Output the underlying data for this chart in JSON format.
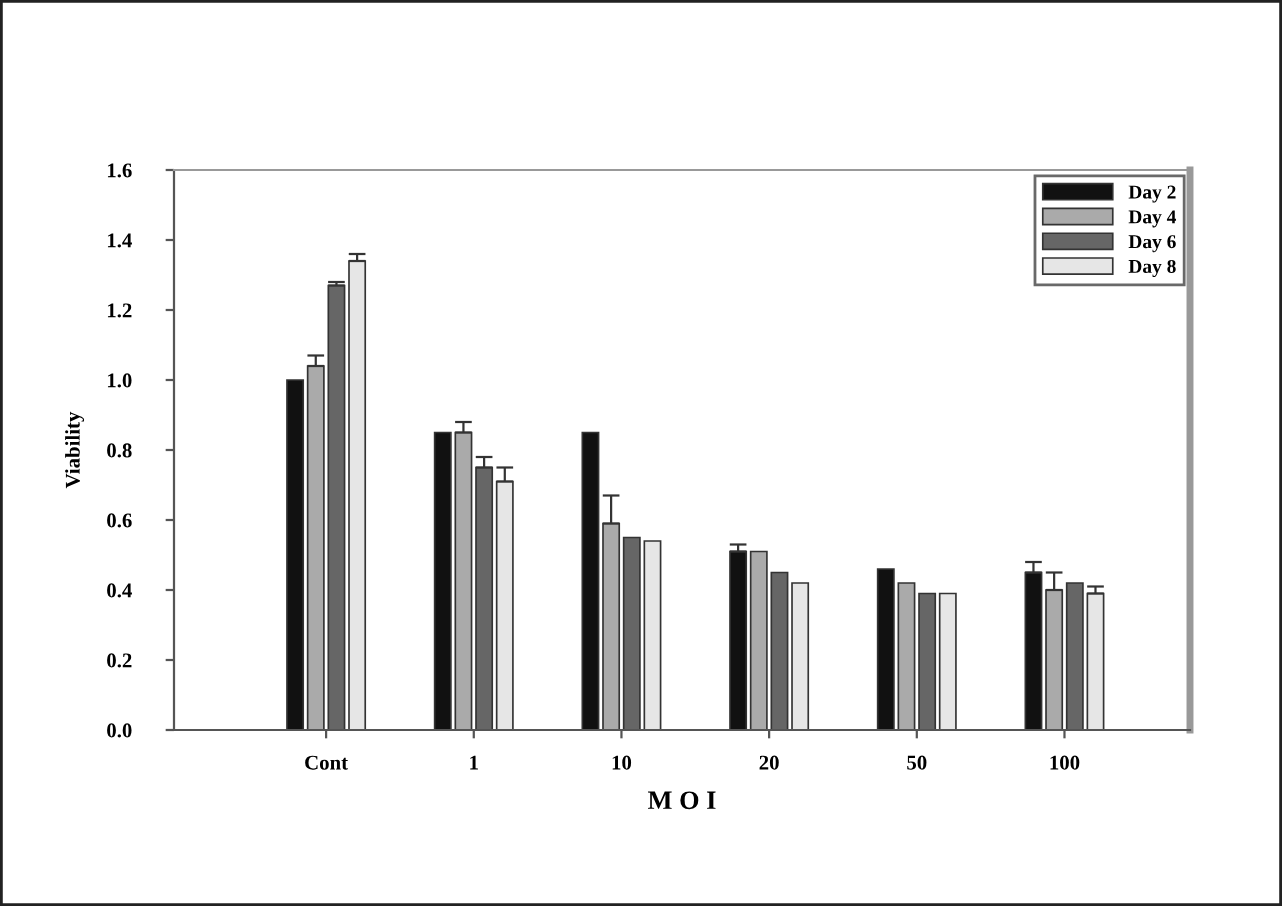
{
  "chart_data": {
    "type": "bar",
    "xlabel": "M O I",
    "ylabel": "Viability",
    "categories": [
      "Cont",
      "1",
      "10",
      "20",
      "50",
      "100"
    ],
    "series": [
      {
        "name": "Day 2",
        "color": "#111111",
        "values": [
          1.0,
          0.85,
          0.85,
          0.51,
          0.46,
          0.45
        ],
        "errors": [
          null,
          null,
          null,
          [
            0.51,
            0.53
          ],
          null,
          [
            0.45,
            0.48
          ]
        ]
      },
      {
        "name": "Day 4",
        "color": "#aaaaaa",
        "values": [
          1.04,
          0.85,
          0.59,
          0.51,
          0.42,
          0.4
        ],
        "errors": [
          [
            1.04,
            1.07
          ],
          [
            0.85,
            0.88
          ],
          [
            0.59,
            0.67
          ],
          null,
          null,
          [
            0.4,
            0.45
          ]
        ]
      },
      {
        "name": "Day 6",
        "color": "#666666",
        "values": [
          1.27,
          0.75,
          0.55,
          0.45,
          0.39,
          0.42
        ],
        "errors": [
          [
            1.27,
            1.28
          ],
          [
            0.75,
            0.78
          ],
          null,
          null,
          null,
          null
        ]
      },
      {
        "name": "Day 8",
        "color": "#e6e6e6",
        "values": [
          1.34,
          0.71,
          0.54,
          0.42,
          0.39,
          0.39
        ],
        "errors": [
          [
            1.34,
            1.36
          ],
          [
            0.71,
            0.75
          ],
          null,
          null,
          null,
          [
            0.39,
            0.41
          ]
        ]
      }
    ],
    "ylim": [
      0,
      1.6
    ],
    "yticks": [
      {
        "value": 0,
        "label": "0.0"
      },
      {
        "value": 0.2,
        "label": "0.2"
      },
      {
        "value": 0.4,
        "label": "0.4"
      },
      {
        "value": 0.6,
        "label": "0.6"
      },
      {
        "value": 0.8,
        "label": "0.8"
      },
      {
        "value": 1.0,
        "label": "1.0"
      },
      {
        "value": 1.2,
        "label": "1.2"
      },
      {
        "value": 1.4,
        "label": "1.4"
      },
      {
        "value": 1.6,
        "label": "1.6"
      }
    ],
    "legend": "top right",
    "grid": false
  }
}
